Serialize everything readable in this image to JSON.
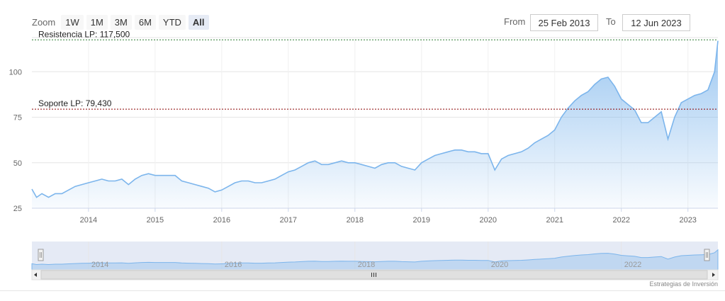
{
  "toolbar": {
    "zoom_label": "Zoom",
    "buttons": [
      "1W",
      "1M",
      "3M",
      "6M",
      "YTD",
      "All"
    ],
    "active": "All",
    "from_label": "From",
    "from_value": "25 Feb 2013",
    "to_label": "To",
    "to_value": "12 Jun 2023"
  },
  "credit": "Estrategias de Inversión",
  "colors": {
    "series": "#7cb5ec",
    "resistance_line": "#2e7d32",
    "support_line": "#8b0000",
    "navigator_mask": "#ccd6eb"
  },
  "chart_data": {
    "type": "area",
    "x_unit": "year",
    "ylim": [
      25,
      118
    ],
    "xlim": [
      2013.15,
      2023.45
    ],
    "y_ticks": [
      25,
      50,
      75,
      100
    ],
    "x_ticks": [
      2014,
      2015,
      2016,
      2017,
      2018,
      2019,
      2020,
      2021,
      2022,
      2023
    ],
    "navigator_ticks": [
      2014,
      2016,
      2018,
      2020,
      2022
    ],
    "grid": true,
    "annotations": [
      {
        "label": "Resistencia LP: 117,500",
        "value": 117.5
      },
      {
        "label": "Soporte LP: 79,430",
        "value": 79.43
      }
    ],
    "series": [
      {
        "x": [
          2013.15,
          2013.22,
          2013.3,
          2013.4,
          2013.5,
          2013.6,
          2013.7,
          2013.8,
          2013.9,
          2014.0,
          2014.1,
          2014.2,
          2014.3,
          2014.4,
          2014.5,
          2014.6,
          2014.7,
          2014.8,
          2014.9,
          2015.0,
          2015.1,
          2015.2,
          2015.3,
          2015.4,
          2015.5,
          2015.6,
          2015.7,
          2015.8,
          2015.9,
          2016.0,
          2016.1,
          2016.2,
          2016.3,
          2016.4,
          2016.5,
          2016.6,
          2016.7,
          2016.8,
          2016.9,
          2017.0,
          2017.1,
          2017.2,
          2017.3,
          2017.4,
          2017.5,
          2017.6,
          2017.7,
          2017.8,
          2017.9,
          2018.0,
          2018.1,
          2018.2,
          2018.3,
          2018.4,
          2018.5,
          2018.6,
          2018.7,
          2018.8,
          2018.9,
          2019.0,
          2019.1,
          2019.2,
          2019.3,
          2019.4,
          2019.5,
          2019.6,
          2019.7,
          2019.8,
          2019.9,
          2020.0,
          2020.1,
          2020.2,
          2020.3,
          2020.4,
          2020.5,
          2020.6,
          2020.7,
          2020.8,
          2020.9,
          2021.0,
          2021.1,
          2021.2,
          2021.3,
          2021.4,
          2021.5,
          2021.6,
          2021.7,
          2021.8,
          2021.9,
          2022.0,
          2022.1,
          2022.2,
          2022.3,
          2022.4,
          2022.5,
          2022.6,
          2022.7,
          2022.8,
          2022.9,
          2023.0,
          2023.1,
          2023.2,
          2023.3,
          2023.35,
          2023.4,
          2023.45
        ],
        "values": [
          35.5,
          31,
          33,
          31,
          33,
          33,
          35,
          37,
          38,
          39,
          40,
          41,
          40,
          40,
          41,
          38,
          41,
          43,
          44,
          43,
          43,
          43,
          43,
          40,
          39,
          38,
          37,
          36,
          34,
          35,
          37,
          39,
          40,
          40,
          39,
          39,
          40,
          41,
          43,
          45,
          46,
          48,
          50,
          51,
          49,
          49,
          50,
          51,
          50,
          50,
          49,
          48,
          47,
          49,
          50,
          50,
          48,
          47,
          46,
          50,
          52,
          54,
          55,
          56,
          57,
          57,
          56,
          56,
          55,
          55,
          46,
          52,
          54,
          55,
          56,
          58,
          61,
          63,
          65,
          68,
          75,
          80,
          84,
          87,
          89,
          93,
          96,
          97,
          92,
          85,
          82,
          79,
          72,
          72,
          75,
          78,
          63,
          75,
          83,
          85,
          87,
          88,
          90,
          95,
          100,
          117
        ]
      }
    ]
  }
}
